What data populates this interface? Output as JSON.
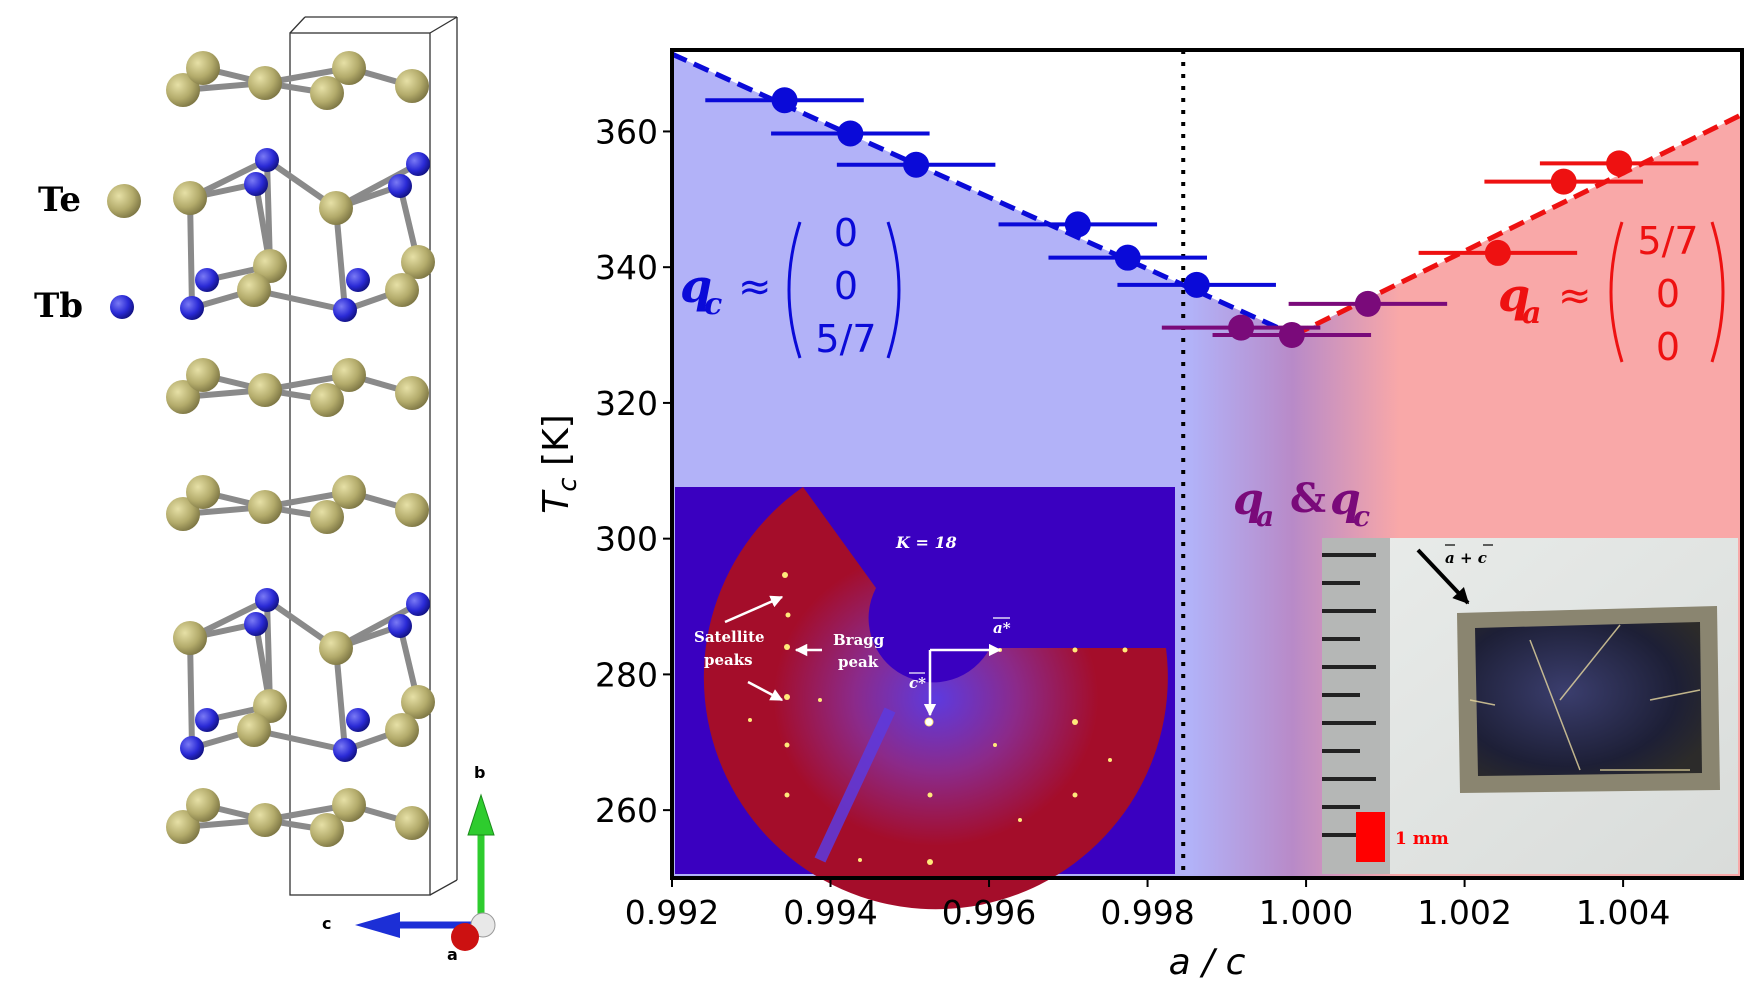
{
  "crystal": {
    "legend": [
      {
        "label": "Te",
        "color": "#b3ab6b"
      },
      {
        "label": "Tb",
        "color": "#2a2ad6"
      }
    ],
    "axes": {
      "b_label": "b",
      "c_label": "c",
      "a_label": "a"
    },
    "colors": {
      "b_axis": "#2ecc2e",
      "c_axis": "#1c2fd6",
      "a_axis": "#cc1111"
    }
  },
  "chart_data": {
    "type": "scatter",
    "xlabel": "a / c",
    "ylabel": "T_c [K]",
    "ylabel_main": "T",
    "ylabel_sub": "c",
    "ylabel_unit": " [K]",
    "xlim": [
      0.992,
      1.0055
    ],
    "ylim": [
      250,
      372
    ],
    "xticks": [
      0.992,
      0.994,
      0.996,
      0.998,
      1.0,
      1.002,
      1.004
    ],
    "xtick_labels": [
      "0.992",
      "0.994",
      "0.996",
      "0.998",
      "1.000",
      "1.002",
      "1.004"
    ],
    "yticks": [
      260,
      280,
      300,
      320,
      340,
      360
    ],
    "ytick_labels": [
      "260",
      "280",
      "300",
      "320",
      "340",
      "360"
    ],
    "vline_x": 0.99845,
    "series": [
      {
        "name": "q_c",
        "color": "#0a0ad8",
        "points": [
          {
            "x": 0.99342,
            "y": 364.6,
            "xerr": 0.001
          },
          {
            "x": 0.99425,
            "y": 359.7,
            "xerr": 0.001
          },
          {
            "x": 0.99508,
            "y": 355.1,
            "xerr": 0.001
          },
          {
            "x": 0.99712,
            "y": 346.3,
            "xerr": 0.001
          },
          {
            "x": 0.99775,
            "y": 341.4,
            "xerr": 0.001
          },
          {
            "x": 0.99862,
            "y": 337.4,
            "xerr": 0.001
          }
        ]
      },
      {
        "name": "q_a & q_c",
        "color": "#7a0a7a",
        "points": [
          {
            "x": 0.99918,
            "y": 331.1,
            "xerr": 0.001
          },
          {
            "x": 0.99982,
            "y": 330.0,
            "xerr": 0.001
          },
          {
            "x": 1.00078,
            "y": 334.6,
            "xerr": 0.001
          }
        ]
      },
      {
        "name": "q_a",
        "color": "#ee1111",
        "points": [
          {
            "x": 1.00242,
            "y": 342.1,
            "xerr": 0.001
          },
          {
            "x": 1.00325,
            "y": 352.6,
            "xerr": 0.001
          },
          {
            "x": 1.00395,
            "y": 355.3,
            "xerr": 0.001
          }
        ]
      }
    ],
    "fit_lines": [
      {
        "name": "q_c fit",
        "color": "#0a0ad8",
        "x": [
          0.992,
          0.99985
        ],
        "y": [
          371.4,
          330.0
        ]
      },
      {
        "name": "q_a fit",
        "color": "#ee1111",
        "x": [
          0.99985,
          1.0055
        ],
        "y": [
          330.0,
          362.5
        ]
      }
    ],
    "regions": [
      {
        "name": "q_c phase",
        "color": "#b2b2f8"
      },
      {
        "name": "mixed phase",
        "color": "#b88ac8"
      },
      {
        "name": "q_a phase",
        "color": "#f9a8a8"
      }
    ]
  },
  "labels": {
    "qc": {
      "q": "q",
      "sub": "c",
      "approx": "≈",
      "vec": [
        "0",
        "0",
        "5/7"
      ],
      "color": "#0a0ad8"
    },
    "qa": {
      "q": "q",
      "sub": "a",
      "approx": "≈",
      "vec": [
        "5/7",
        "0",
        "0"
      ],
      "color": "#ee1111"
    },
    "mixed": {
      "text1": "q",
      "sub1": "a",
      "amp": " & ",
      "text2": "q",
      "sub2": "c",
      "color": "#7a0a7a"
    }
  },
  "inset_diffraction": {
    "k_label": "K = 18",
    "satellite_label_1": "Satellite",
    "satellite_label_2": "peaks",
    "bragg_label_1": "Bragg",
    "bragg_label_2": "peak",
    "a_star_label": "a*",
    "c_star_label": "c*",
    "colors": {
      "background": "#3a00c0",
      "map": "#a40d2a"
    }
  },
  "inset_photo": {
    "direction_label": "a + c",
    "scale_label": "1 mm",
    "colors": {
      "scale_bar": "#ff0000"
    }
  }
}
